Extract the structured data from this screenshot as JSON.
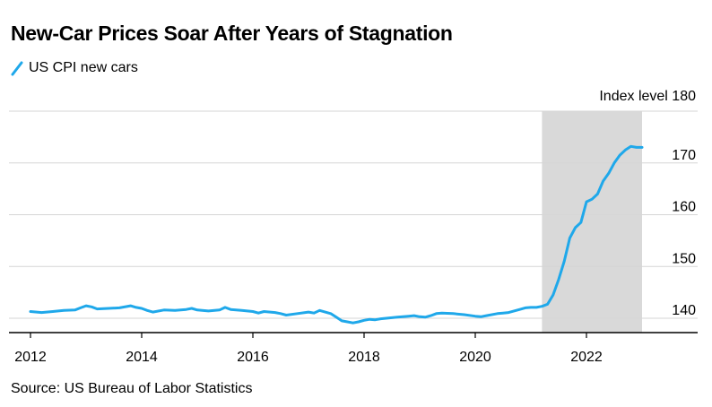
{
  "title": "New-Car Prices Soar After Years of Stagnation",
  "source": "Source: US Bureau of Labor Statistics",
  "colors": {
    "series": "#1fa8ea",
    "shade": "#d9d9d9",
    "grid": "#d6d6d6",
    "axis": "#000000"
  },
  "chart_data": {
    "type": "line",
    "title": "New-Car Prices Soar After Years of Stagnation",
    "ylabel": "Index level",
    "xlim": [
      2012.0,
      2023.7
    ],
    "ylim": [
      138.5,
      180
    ],
    "x_ticks": [
      "2012",
      "2014",
      "2016",
      "2018",
      "2020",
      "2022"
    ],
    "y_ticks": [
      "140",
      "150",
      "160",
      "170",
      "180"
    ],
    "y_tick_top_label": "Index level 180",
    "grid": true,
    "shaded_region": {
      "x_start": 2021.2,
      "x_end": 2023.0
    },
    "legend": {
      "position": "top-left"
    },
    "series": [
      {
        "name": "US CPI new cars",
        "x": [
          2012.0,
          2012.2,
          2012.4,
          2012.6,
          2012.8,
          2012.9,
          2013.0,
          2013.1,
          2013.2,
          2013.4,
          2013.6,
          2013.8,
          2013.9,
          2014.0,
          2014.1,
          2014.2,
          2014.4,
          2014.6,
          2014.8,
          2014.9,
          2015.0,
          2015.2,
          2015.4,
          2015.5,
          2015.6,
          2015.8,
          2016.0,
          2016.1,
          2016.2,
          2016.4,
          2016.5,
          2016.6,
          2016.8,
          2017.0,
          2017.1,
          2017.2,
          2017.3,
          2017.4,
          2017.5,
          2017.6,
          2017.7,
          2017.8,
          2017.9,
          2018.0,
          2018.1,
          2018.2,
          2018.3,
          2018.4,
          2018.6,
          2018.8,
          2018.9,
          2019.0,
          2019.1,
          2019.2,
          2019.3,
          2019.4,
          2019.6,
          2019.8,
          2020.0,
          2020.1,
          2020.2,
          2020.4,
          2020.5,
          2020.6,
          2020.8,
          2020.9,
          2021.0,
          2021.1,
          2021.2,
          2021.3,
          2021.4,
          2021.5,
          2021.6,
          2021.7,
          2021.8,
          2021.9,
          2022.0,
          2022.1,
          2022.2,
          2022.3,
          2022.4,
          2022.5,
          2022.6,
          2022.7,
          2022.8,
          2022.9,
          2023.0
        ],
        "values": [
          141.3,
          141.1,
          141.3,
          141.5,
          141.6,
          142.0,
          142.4,
          142.2,
          141.8,
          141.9,
          142.0,
          142.4,
          142.1,
          141.9,
          141.5,
          141.2,
          141.6,
          141.5,
          141.7,
          141.9,
          141.6,
          141.4,
          141.6,
          142.1,
          141.7,
          141.5,
          141.3,
          141.0,
          141.3,
          141.1,
          140.9,
          140.6,
          140.9,
          141.2,
          141.0,
          141.5,
          141.2,
          140.9,
          140.2,
          139.5,
          139.3,
          139.1,
          139.3,
          139.6,
          139.8,
          139.7,
          139.9,
          140.0,
          140.2,
          140.4,
          140.5,
          140.3,
          140.2,
          140.5,
          140.9,
          141.0,
          140.9,
          140.7,
          140.4,
          140.3,
          140.5,
          140.9,
          141.0,
          141.1,
          141.7,
          142.0,
          142.1,
          142.1,
          142.3,
          142.7,
          144.5,
          147.5,
          151.0,
          155.5,
          157.5,
          158.5,
          162.5,
          163.0,
          164.0,
          166.5,
          168.0,
          170.0,
          171.5,
          172.5,
          173.2,
          173.0,
          173.0
        ]
      }
    ]
  }
}
